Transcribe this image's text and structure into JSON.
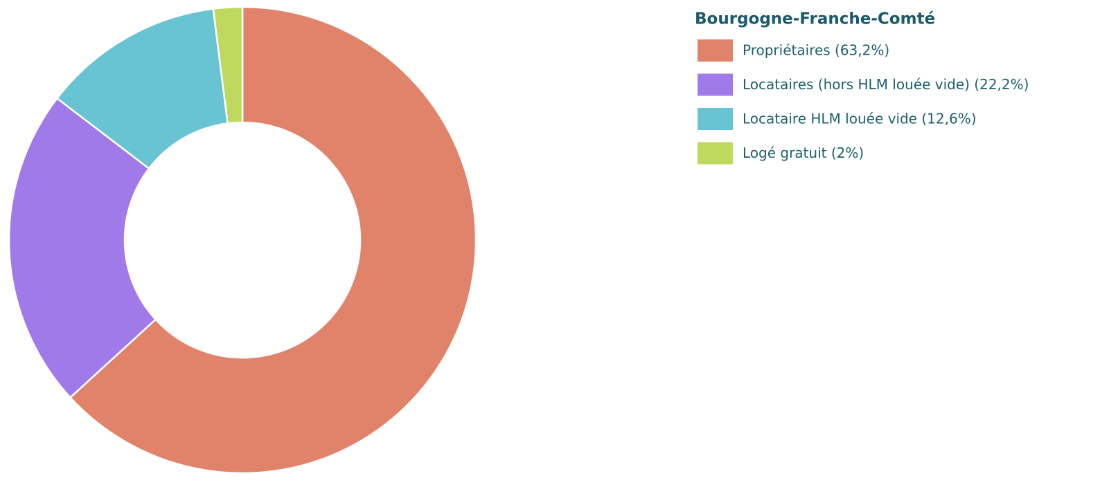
{
  "chart_data": {
    "type": "donut",
    "title": "Bourgogne-Franche-Comté",
    "categories": [
      "Propriétaires (63,2%)",
      "Locataires (hors HLM louée vide) (22,2%)",
      "Locataire HLM louée vide (12,6%)",
      "Logé gratuit (2%)"
    ],
    "values": [
      63.2,
      22.2,
      12.6,
      2
    ],
    "colors": [
      "#e0836a",
      "#a07ae8",
      "#68c3d2",
      "#bfd95f"
    ]
  }
}
